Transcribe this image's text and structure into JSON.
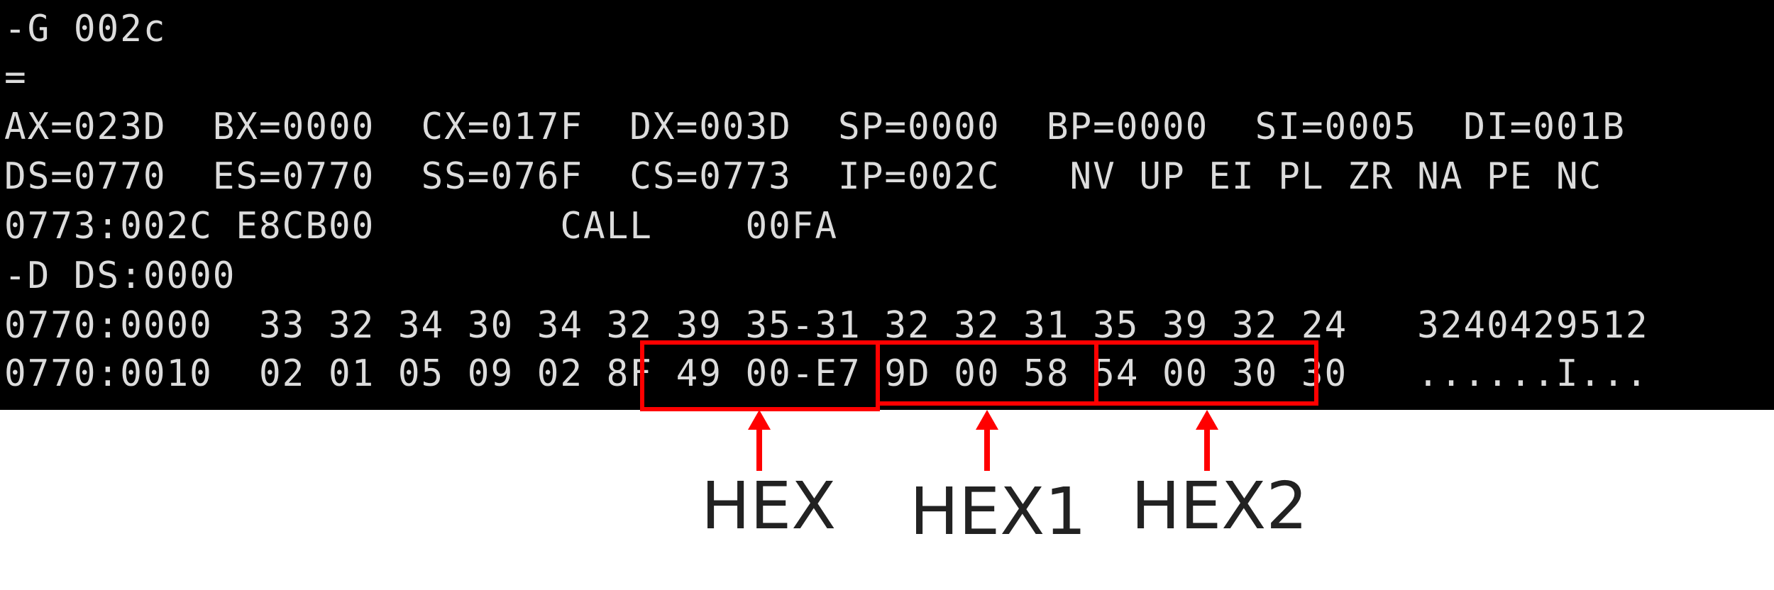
{
  "terminal": {
    "lines": [
      "-G 002c",
      "=",
      "AX=023D  BX=0000  CX=017F  DX=003D  SP=0000  BP=0000  SI=0005  DI=001B",
      "DS=0770  ES=0770  SS=076F  CS=0773  IP=002C   NV UP EI PL ZR NA PE NC",
      "0773:002C E8CB00        CALL    00FA",
      "-D DS:0000",
      "0770:0000  33 32 34 30 34 32 39 35-31 32 32 31 35 39 32 24   3240429512",
      "0770:0010  02 01 05 09 02 8F 49 00-E7 9D 00 58 54 00 30 30   ......I..."
    ]
  },
  "annotations": {
    "labels": [
      "HEX",
      "HEX1",
      "HEX2"
    ],
    "highlight_color": "#ff0000"
  }
}
